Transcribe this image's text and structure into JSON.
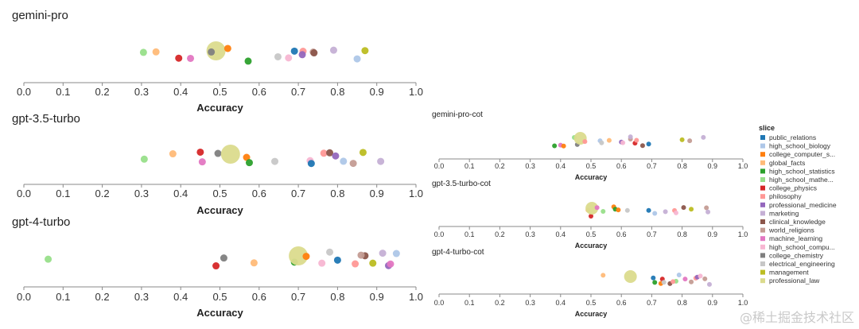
{
  "chart_data": {
    "type": "scatter",
    "xlabel": "Accuracy",
    "xlim": [
      0.0,
      1.0
    ],
    "ticks": [
      "0.0",
      "0.1",
      "0.2",
      "0.3",
      "0.4",
      "0.5",
      "0.6",
      "0.7",
      "0.8",
      "0.9",
      "1.0"
    ],
    "legend": {
      "title": "slice",
      "placement": "right",
      "entries": [
        {
          "name": "public_relations",
          "color": "#1f77b4"
        },
        {
          "name": "high_school_biology",
          "color": "#aec7e8"
        },
        {
          "name": "college_computer_s...",
          "color": "#ff7f0e"
        },
        {
          "name": "global_facts",
          "color": "#ffbb78"
        },
        {
          "name": "high_school_statistics",
          "color": "#2ca02c"
        },
        {
          "name": "high_school_mathe...",
          "color": "#98df8a"
        },
        {
          "name": "college_physics",
          "color": "#d62728"
        },
        {
          "name": "philosophy",
          "color": "#ff9896"
        },
        {
          "name": "professional_medicine",
          "color": "#9467bd"
        },
        {
          "name": "marketing",
          "color": "#c5b0d5"
        },
        {
          "name": "clinical_knowledge",
          "color": "#8c564b"
        },
        {
          "name": "world_religions",
          "color": "#c49c94"
        },
        {
          "name": "machine_learning",
          "color": "#e377c2"
        },
        {
          "name": "high_school_compu...",
          "color": "#f7b6d2"
        },
        {
          "name": "college_chemistry",
          "color": "#7f7f7f"
        },
        {
          "name": "electrical_engineering",
          "color": "#c7c7c7"
        },
        {
          "name": "management",
          "color": "#bcbd22"
        },
        {
          "name": "professional_law",
          "color": "#dbdb8d"
        }
      ]
    },
    "panels": [
      {
        "title": "gemini-pro",
        "points": [
          {
            "s": "high_school_mathe...",
            "x": 0.305
          },
          {
            "s": "global_facts",
            "x": 0.337
          },
          {
            "s": "college_physics",
            "x": 0.395
          },
          {
            "s": "machine_learning",
            "x": 0.425
          },
          {
            "s": "professional_law",
            "x": 0.49
          },
          {
            "s": "college_chemistry",
            "x": 0.478
          },
          {
            "s": "college_computer_s...",
            "x": 0.52
          },
          {
            "s": "high_school_statistics",
            "x": 0.572
          },
          {
            "s": "electrical_engineering",
            "x": 0.648
          },
          {
            "s": "high_school_compu...",
            "x": 0.675
          },
          {
            "s": "public_relations",
            "x": 0.69
          },
          {
            "s": "philosophy",
            "x": 0.712
          },
          {
            "s": "professional_medicine",
            "x": 0.71
          },
          {
            "s": "world_religions",
            "x": 0.738
          },
          {
            "s": "clinical_knowledge",
            "x": 0.74
          },
          {
            "s": "marketing",
            "x": 0.79
          },
          {
            "s": "high_school_biology",
            "x": 0.85
          },
          {
            "s": "management",
            "x": 0.87
          }
        ]
      },
      {
        "title": "gpt-3.5-turbo",
        "points": [
          {
            "s": "high_school_mathe...",
            "x": 0.307
          },
          {
            "s": "global_facts",
            "x": 0.38
          },
          {
            "s": "college_physics",
            "x": 0.45
          },
          {
            "s": "machine_learning",
            "x": 0.455
          },
          {
            "s": "college_chemistry",
            "x": 0.495
          },
          {
            "s": "professional_law",
            "x": 0.527
          },
          {
            "s": "college_computer_s...",
            "x": 0.568
          },
          {
            "s": "high_school_statistics",
            "x": 0.575
          },
          {
            "s": "electrical_engineering",
            "x": 0.64
          },
          {
            "s": "high_school_compu...",
            "x": 0.73
          },
          {
            "s": "public_relations",
            "x": 0.733
          },
          {
            "s": "philosophy",
            "x": 0.765
          },
          {
            "s": "clinical_knowledge",
            "x": 0.78
          },
          {
            "s": "professional_medicine",
            "x": 0.795
          },
          {
            "s": "high_school_biology",
            "x": 0.815
          },
          {
            "s": "world_religions",
            "x": 0.84
          },
          {
            "s": "management",
            "x": 0.865
          },
          {
            "s": "marketing",
            "x": 0.91
          }
        ]
      },
      {
        "title": "gpt-4-turbo",
        "points": [
          {
            "s": "high_school_mathe...",
            "x": 0.062
          },
          {
            "s": "college_physics",
            "x": 0.49
          },
          {
            "s": "college_chemistry",
            "x": 0.51
          },
          {
            "s": "global_facts",
            "x": 0.587
          },
          {
            "s": "high_school_statistics",
            "x": 0.69
          },
          {
            "s": "professional_law",
            "x": 0.7
          },
          {
            "s": "college_computer_s...",
            "x": 0.72
          },
          {
            "s": "high_school_compu...",
            "x": 0.76
          },
          {
            "s": "electrical_engineering",
            "x": 0.78
          },
          {
            "s": "public_relations",
            "x": 0.8
          },
          {
            "s": "philosophy",
            "x": 0.845
          },
          {
            "s": "clinical_knowledge",
            "x": 0.87
          },
          {
            "s": "world_religions",
            "x": 0.86
          },
          {
            "s": "management",
            "x": 0.89
          },
          {
            "s": "marketing",
            "x": 0.915
          },
          {
            "s": "professional_medicine",
            "x": 0.93
          },
          {
            "s": "machine_learning",
            "x": 0.935
          },
          {
            "s": "high_school_biology",
            "x": 0.95
          }
        ]
      },
      {
        "title": "gemini-pro-cot",
        "points": [
          {
            "s": "high_school_statistics",
            "x": 0.38
          },
          {
            "s": "machine_learning",
            "x": 0.4
          },
          {
            "s": "college_computer_s...",
            "x": 0.41
          },
          {
            "s": "high_school_mathe...",
            "x": 0.445
          },
          {
            "s": "college_chemistry",
            "x": 0.455
          },
          {
            "s": "professional_law",
            "x": 0.465
          },
          {
            "s": "philosophy",
            "x": 0.48
          },
          {
            "s": "high_school_biology",
            "x": 0.53
          },
          {
            "s": "electrical_engineering",
            "x": 0.535
          },
          {
            "s": "global_facts",
            "x": 0.56
          },
          {
            "s": "professional_medicine",
            "x": 0.6
          },
          {
            "s": "high_school_compu...",
            "x": 0.605
          },
          {
            "s": "world_religions",
            "x": 0.63
          },
          {
            "s": "marketing",
            "x": 0.63
          },
          {
            "s": "college_physics",
            "x": 0.645
          },
          {
            "s": "philosophy",
            "x": 0.65
          },
          {
            "s": "clinical_knowledge",
            "x": 0.67
          },
          {
            "s": "public_relations",
            "x": 0.69
          },
          {
            "s": "management",
            "x": 0.8
          },
          {
            "s": "world_religions",
            "x": 0.825
          },
          {
            "s": "marketing",
            "x": 0.87
          }
        ]
      },
      {
        "title": "gpt-3.5-turbo-cot",
        "points": [
          {
            "s": "global_facts",
            "x": 0.49
          },
          {
            "s": "college_physics",
            "x": 0.5
          },
          {
            "s": "professional_law",
            "x": 0.503
          },
          {
            "s": "machine_learning",
            "x": 0.52
          },
          {
            "s": "high_school_mathe...",
            "x": 0.54
          },
          {
            "s": "college_computer_s...",
            "x": 0.575
          },
          {
            "s": "high_school_statistics",
            "x": 0.58
          },
          {
            "s": "college_computer_s...",
            "x": 0.59
          },
          {
            "s": "electrical_engineering",
            "x": 0.62
          },
          {
            "s": "public_relations",
            "x": 0.69
          },
          {
            "s": "high_school_biology",
            "x": 0.71
          },
          {
            "s": "marketing",
            "x": 0.745
          },
          {
            "s": "philosophy",
            "x": 0.775
          },
          {
            "s": "high_school_compu...",
            "x": 0.78
          },
          {
            "s": "clinical_knowledge",
            "x": 0.805
          },
          {
            "s": "management",
            "x": 0.83
          },
          {
            "s": "world_religions",
            "x": 0.88
          },
          {
            "s": "marketing",
            "x": 0.885
          }
        ]
      },
      {
        "title": "gpt-4-turbo-cot",
        "points": [
          {
            "s": "global_facts",
            "x": 0.54
          },
          {
            "s": "professional_law",
            "x": 0.63
          },
          {
            "s": "public_relations",
            "x": 0.705
          },
          {
            "s": "high_school_statistics",
            "x": 0.71
          },
          {
            "s": "college_computer_s...",
            "x": 0.73
          },
          {
            "s": "college_physics",
            "x": 0.735
          },
          {
            "s": "electrical_engineering",
            "x": 0.74
          },
          {
            "s": "clinical_knowledge",
            "x": 0.76
          },
          {
            "s": "high_school_mathe...",
            "x": 0.78
          },
          {
            "s": "philosophy",
            "x": 0.77
          },
          {
            "s": "high_school_biology",
            "x": 0.79
          },
          {
            "s": "machine_learning",
            "x": 0.81
          },
          {
            "s": "world_religions",
            "x": 0.83
          },
          {
            "s": "philosophy",
            "x": 0.845
          },
          {
            "s": "professional_medicine",
            "x": 0.85
          },
          {
            "s": "high_school_compu...",
            "x": 0.86
          },
          {
            "s": "world_religions",
            "x": 0.875
          },
          {
            "s": "marketing",
            "x": 0.89
          }
        ]
      }
    ]
  },
  "watermark": "@稀土掘金技术社区"
}
